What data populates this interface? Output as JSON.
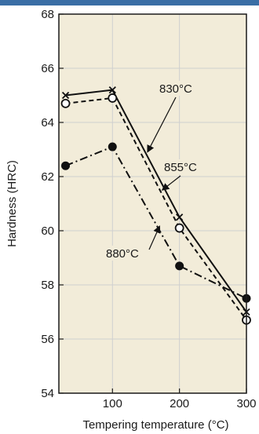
{
  "chart_data": {
    "type": "line",
    "xlabel": "Tempering temperature (°C)",
    "ylabel": "Hardness (HRC)",
    "xlim": [
      20,
      300
    ],
    "ylim": [
      54,
      68
    ],
    "x_ticks": [
      100,
      200,
      300
    ],
    "y_ticks": [
      54,
      56,
      58,
      60,
      62,
      64,
      66,
      68
    ],
    "grid": true,
    "background": "#f2ecd9",
    "grid_color": "#cfcfcf",
    "header_color": "#3a6ea5",
    "series": [
      {
        "name": "830°C",
        "marker": "x",
        "linestyle": "solid",
        "x": [
          30,
          100,
          200,
          300
        ],
        "y": [
          65.0,
          65.2,
          60.5,
          57.0
        ]
      },
      {
        "name": "855°C",
        "marker": "open-circle",
        "linestyle": "dashed",
        "x": [
          30,
          100,
          200,
          300
        ],
        "y": [
          64.7,
          64.9,
          60.1,
          56.7
        ]
      },
      {
        "name": "880°C",
        "marker": "filled-circle",
        "linestyle": "dashdot",
        "x": [
          30,
          100,
          200,
          300
        ],
        "y": [
          62.4,
          63.1,
          58.7,
          57.5
        ]
      }
    ],
    "annotations": [
      {
        "text": "830°C",
        "series": 0
      },
      {
        "text": "855°C",
        "series": 1
      },
      {
        "text": "880°C",
        "series": 2
      }
    ]
  }
}
